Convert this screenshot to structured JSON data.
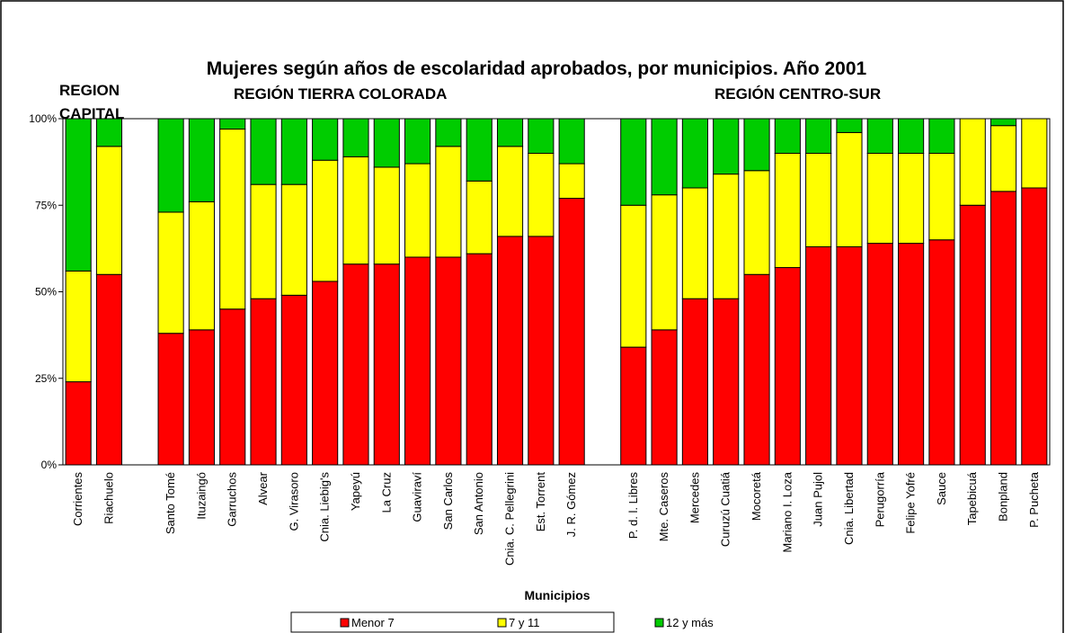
{
  "chart_data": {
    "type": "stacked_bar",
    "title": "Mujeres según años de escolaridad aprobados, por municipios. Año 2001",
    "x_label": "Municipios",
    "annotations": [
      "REGION CAPITAL",
      "REGIÓN TIERRA COLORADA",
      "REGIÓN CENTRO-SUR"
    ],
    "categories": [
      "Corrientes",
      "Riachuelo",
      null,
      "Santo Tomé",
      "Ituzaingó",
      "Garruchos",
      "Alvear",
      "G. Virasoro",
      "Cnia. Liebig's",
      "Yapeyú",
      "La Cruz",
      "Guaviraví",
      "San Carlos",
      "San Antonio",
      "Cnia. C. Pellegrini",
      "Est. Torrent",
      "J. R. Gómez",
      null,
      "P. d. l. Libres",
      "Mte. Caseros",
      "Mercedes",
      "Curuzú Cuatiá",
      "Mocoretá",
      "Mariano I. Loza",
      "Juan Pujol",
      "Cnia. Libertad",
      "Perugorría",
      "Felipe Yofré",
      "Sauce",
      "Tapebicuá",
      "Bonpland",
      "P. Pucheta"
    ],
    "series": [
      {
        "name": "Menor 7",
        "color": "#ff0000",
        "values": [
          24,
          55,
          null,
          38,
          39,
          45,
          48,
          49,
          53,
          58,
          58,
          60,
          60,
          61,
          66,
          66,
          77,
          null,
          34,
          39,
          48,
          48,
          55,
          57,
          63,
          63,
          64,
          64,
          65,
          75,
          79,
          80
        ]
      },
      {
        "name": "7 y 11",
        "color": "#ffff00",
        "values": [
          32,
          37,
          null,
          35,
          37,
          52,
          33,
          32,
          35,
          31,
          28,
          27,
          32,
          21,
          26,
          24,
          10,
          null,
          41,
          39,
          32,
          36,
          30,
          33,
          27,
          33,
          26,
          26,
          25,
          25,
          19,
          20
        ]
      },
      {
        "name": "12 y más",
        "color": "#00cc00",
        "values": [
          44,
          8,
          null,
          27,
          24,
          3,
          19,
          19,
          12,
          11,
          14,
          13,
          8,
          18,
          8,
          10,
          13,
          null,
          25,
          22,
          20,
          16,
          15,
          10,
          10,
          4,
          10,
          10,
          10,
          0,
          2,
          0
        ]
      }
    ],
    "ylim": [
      0,
      100
    ],
    "yticks": [
      {
        "value": 0,
        "label": "0%"
      },
      {
        "value": 25,
        "label": "25%"
      },
      {
        "value": 50,
        "label": "50%"
      },
      {
        "value": 75,
        "label": "75%"
      },
      {
        "value": 100,
        "label": "100%"
      }
    ],
    "legend": "bottom"
  }
}
